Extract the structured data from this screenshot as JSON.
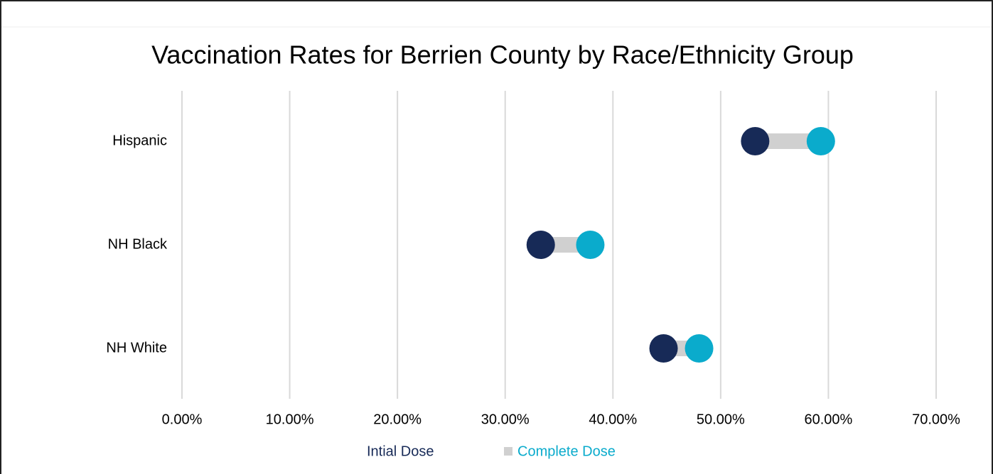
{
  "chart_data": {
    "type": "dumbbell",
    "title": "Vaccination Rates for Berrien County by Race/Ethnicity Group",
    "categories": [
      "Hispanic",
      "NH Black",
      "NH White"
    ],
    "series": [
      {
        "name": "Intial Dose",
        "color": "#172a57",
        "values": [
          53.2,
          33.3,
          44.7
        ]
      },
      {
        "name": "Complete Dose",
        "color": "#0aabcc",
        "values": [
          59.3,
          37.9,
          48.0
        ]
      }
    ],
    "connector_color": "#d0d0d0",
    "xlim": [
      0,
      70
    ],
    "xticks": [
      {
        "value": 0,
        "label": "0.00%"
      },
      {
        "value": 10,
        "label": "10.00%"
      },
      {
        "value": 20,
        "label": "20.00%"
      },
      {
        "value": 30,
        "label": "30.00%"
      },
      {
        "value": 40,
        "label": "40.00%"
      },
      {
        "value": 50,
        "label": "50.00%"
      },
      {
        "value": 60,
        "label": "60.00%"
      },
      {
        "value": 70,
        "label": "70.00%"
      }
    ],
    "grid": true
  }
}
